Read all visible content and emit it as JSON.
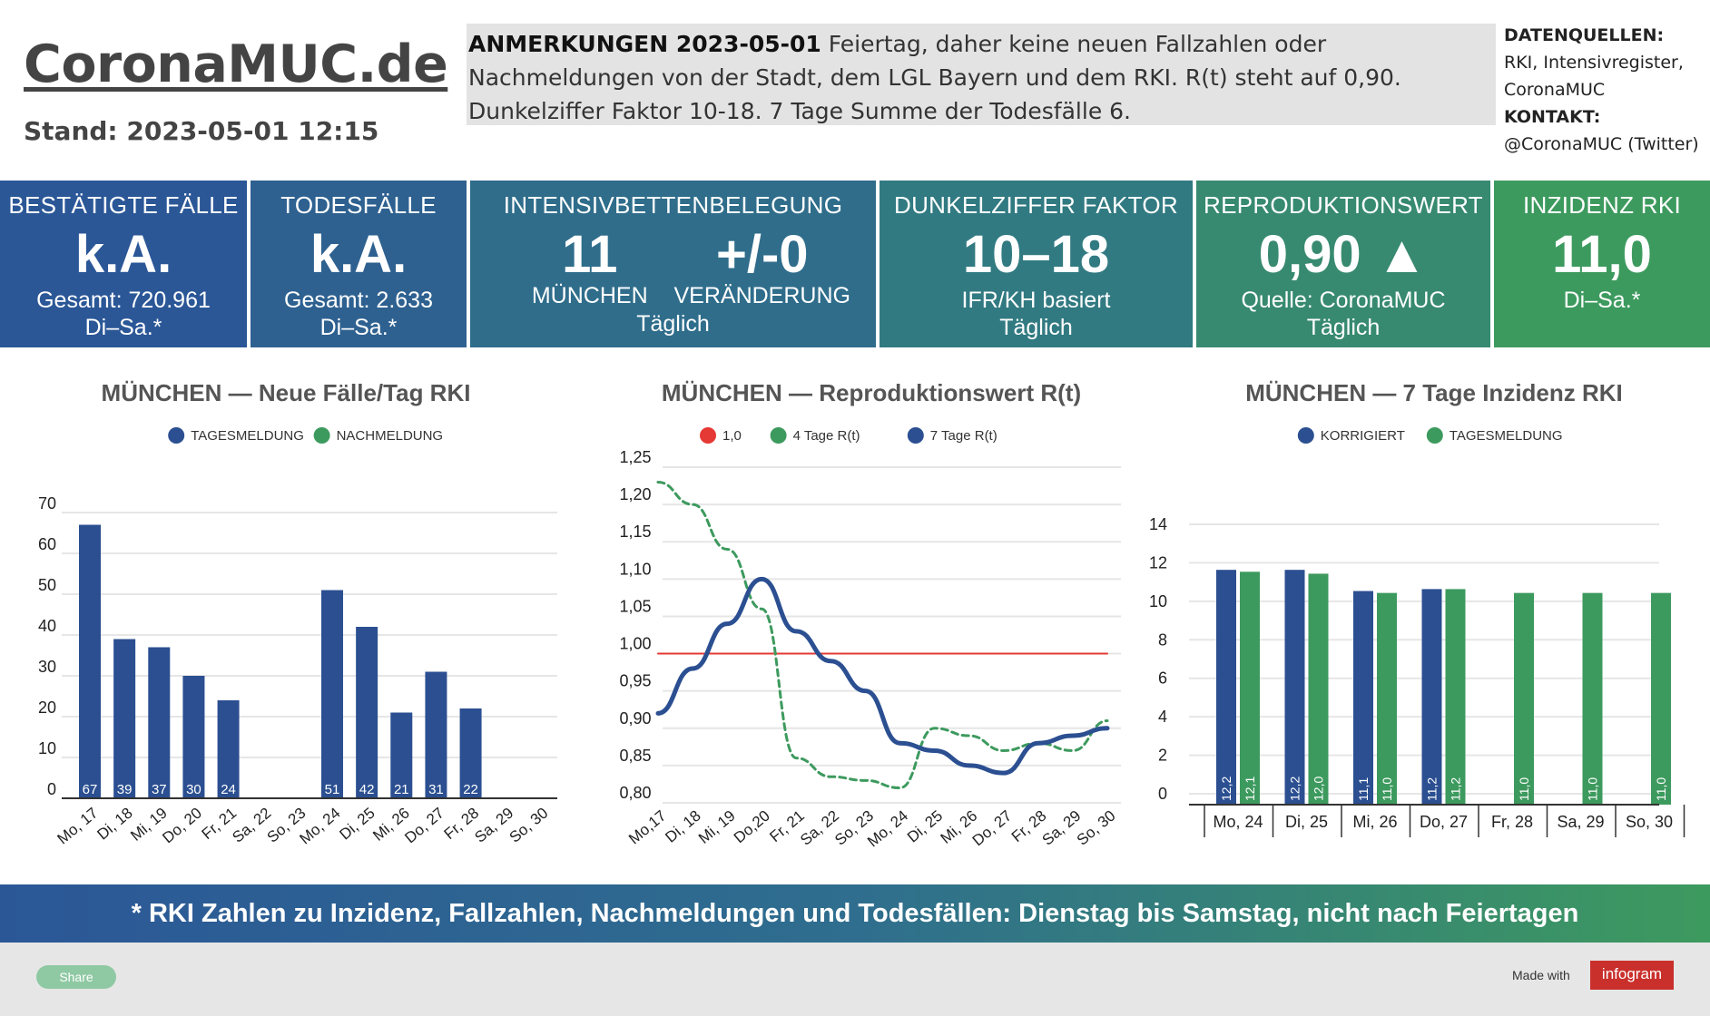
{
  "header": {
    "brand": "CoronaMUC.de",
    "stand": "Stand: 2023-05-01 12:15",
    "notes_label": "ANMERKUNGEN 2023-05-01",
    "notes_text": " Feiertag, daher keine neuen Fallzahlen oder Nachmeldungen von der Stadt, dem LGL Bayern und dem RKI. R(t) steht auf 0,90. Dunkelziffer Faktor 10-18. 7 Tage Summe der Todesfälle 6.",
    "sources_label": "DATENQUELLEN:",
    "sources_text": "RKI, Intensivregister, CoronaMUC",
    "contact_label": "KONTAKT:",
    "contact_text": "@CoronaMUC (Twitter)"
  },
  "kpis": {
    "cases": {
      "title": "BESTÄTIGTE FÄLLE",
      "value": "k.A.",
      "sub1": "Gesamt: 720.961",
      "sub2": "Di–Sa.*",
      "color": "#2b5797"
    },
    "deaths": {
      "title": "TODESFÄLLE",
      "value": "k.A.",
      "sub1": "Gesamt: 2.633",
      "sub2": "Di–Sa.*",
      "color": "#2e6190"
    },
    "icu": {
      "title": "INTENSIVBETTENBELEGUNG",
      "value_left": "11",
      "label_left": "MÜNCHEN",
      "value_right": "+/-0",
      "label_right": "VERÄNDERUNG",
      "sub2": "Täglich",
      "color": "#2f6d8b"
    },
    "dark": {
      "title": "DUNKELZIFFER FAKTOR",
      "value": "10–18",
      "sub1": "IFR/KH basiert",
      "sub2": "Täglich",
      "color": "#317a82"
    },
    "r": {
      "title": "REPRODUKTIONSWERT",
      "value": "0,90 ▲",
      "sub1": "Quelle: CoronaMUC",
      "sub2": "Täglich",
      "color": "#378a6f"
    },
    "incidence": {
      "title": "INZIDENZ RKI",
      "value": "11,0",
      "sub1": "Di–Sa.*",
      "color": "#3d9a5e"
    }
  },
  "chart_data": [
    {
      "type": "bar",
      "title": "MÜNCHEN — Neue Fälle/Tag RKI",
      "categories": [
        "Mo, 17",
        "Di, 18",
        "Mi, 19",
        "Do, 20",
        "Fr, 21",
        "Sa, 22",
        "So, 23",
        "Mo, 24",
        "Di, 25",
        "Mi, 26",
        "Do, 27",
        "Fr, 28",
        "Sa, 29",
        "So, 30"
      ],
      "series": [
        {
          "name": "TAGESMELDUNG",
          "color": "#2b4f91",
          "values": [
            67,
            39,
            37,
            30,
            24,
            null,
            null,
            51,
            42,
            21,
            31,
            22,
            null,
            null
          ]
        },
        {
          "name": "NACHMELDUNG",
          "color": "#3d9a5e",
          "values": [
            null,
            null,
            null,
            null,
            null,
            null,
            null,
            null,
            null,
            null,
            null,
            null,
            null,
            null
          ]
        }
      ],
      "yticks": [
        "0",
        "10",
        "20",
        "30",
        "40",
        "50",
        "60",
        "70"
      ],
      "ylim": [
        0,
        70
      ],
      "grid": true,
      "legend": "top"
    },
    {
      "type": "line",
      "title": "MÜNCHEN — Reproduktionswert R(t)",
      "categories": [
        "Mo,17",
        "Di, 18",
        "Mi, 19",
        "Do,20",
        "Fr, 21",
        "Sa, 22",
        "So, 23",
        "Mo, 24",
        "Di, 25",
        "Mi, 26",
        "Do, 27",
        "Fr, 28",
        "Sa, 29",
        "So, 30"
      ],
      "series": [
        {
          "name": "1,0",
          "color": "#e53935",
          "values": [
            1.0,
            1.0,
            1.0,
            1.0,
            1.0,
            1.0,
            1.0,
            1.0,
            1.0,
            1.0,
            1.0,
            1.0,
            1.0,
            1.0
          ]
        },
        {
          "name": "4 Tage R(t)",
          "color": "#3d9a5e",
          "dashed": true,
          "values": [
            1.23,
            1.2,
            1.14,
            1.06,
            0.86,
            0.835,
            0.83,
            0.82,
            0.9,
            0.89,
            0.87,
            0.88,
            0.87,
            0.91
          ]
        },
        {
          "name": "7 Tage R(t)",
          "color": "#2b4f91",
          "values": [
            0.92,
            0.98,
            1.04,
            1.1,
            1.03,
            0.99,
            0.95,
            0.88,
            0.87,
            0.85,
            0.84,
            0.88,
            0.89,
            0.9
          ]
        }
      ],
      "yticks": [
        "0,80",
        "0,85",
        "0,90",
        "0,95",
        "1,00",
        "1,05",
        "1,10",
        "1,15",
        "1,20",
        "1,25"
      ],
      "ylim": [
        0.8,
        1.25
      ],
      "grid": true,
      "legend": "top"
    },
    {
      "type": "bar",
      "title": "MÜNCHEN — 7 Tage Inzidenz RKI",
      "categories": [
        "Mo, 24",
        "Di, 25",
        "Mi, 26",
        "Do, 27",
        "Fr, 28",
        "Sa, 29",
        "So, 30"
      ],
      "series": [
        {
          "name": "KORRIGIERT",
          "color": "#2b4f91",
          "values": [
            12.2,
            12.2,
            11.1,
            11.2,
            null,
            null,
            null
          ],
          "labels": [
            "12,2",
            "12,2",
            "11,1",
            "11,2",
            "",
            "",
            ""
          ]
        },
        {
          "name": "TAGESMELDUNG",
          "color": "#3d9a5e",
          "values": [
            12.1,
            12.0,
            11.0,
            11.2,
            11.0,
            11.0,
            11.0
          ],
          "labels": [
            "12,1",
            "12,0",
            "11,0",
            "11,2",
            "11,0",
            "11,0",
            "11,0"
          ]
        }
      ],
      "yticks": [
        "0",
        "2",
        "4",
        "6",
        "8",
        "10",
        "12",
        "14"
      ],
      "ylim": [
        0,
        14
      ],
      "grid": true,
      "legend": "top"
    }
  ],
  "banner": "* RKI Zahlen zu Inzidenz, Fallzahlen, Nachmeldungen und Todesfällen: Dienstag bis Samstag, nicht nach Feiertagen",
  "footer": {
    "share": "Share",
    "made_with": "Made with",
    "infogram": "infogram"
  }
}
